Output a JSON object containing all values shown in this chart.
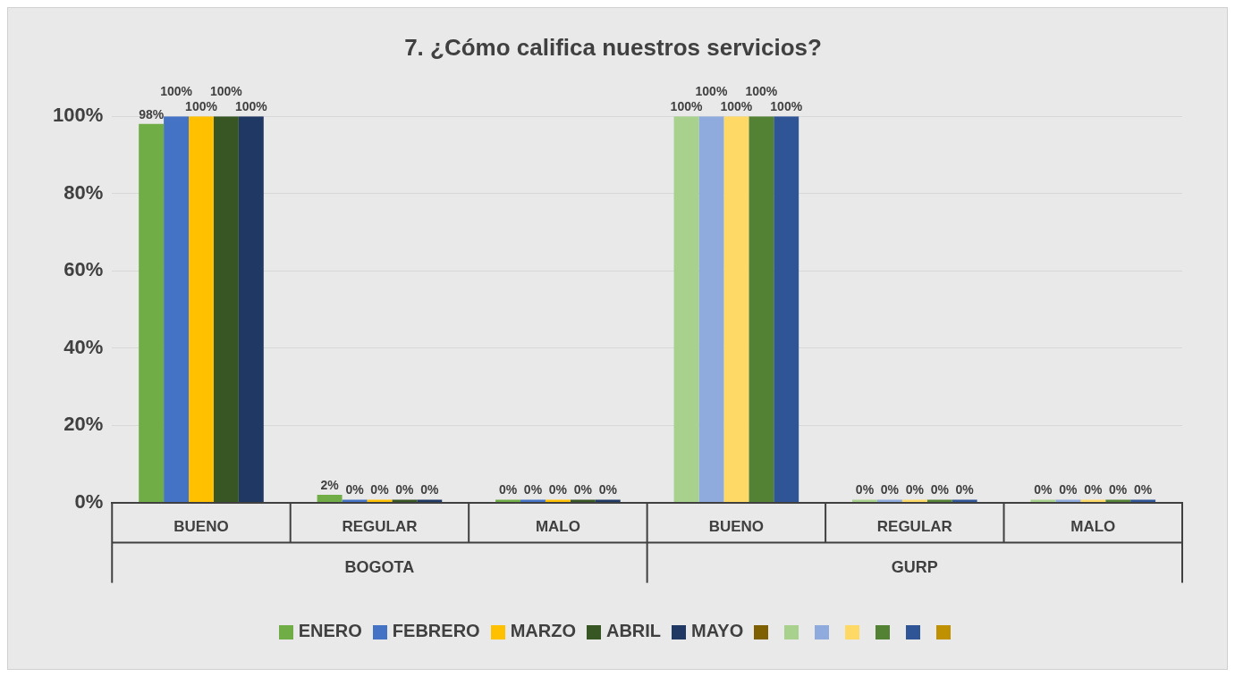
{
  "chart_data": {
    "type": "bar",
    "title": "7. ¿Cómo califica nuestros servicios?",
    "categories": [
      "BUENO",
      "REGULAR",
      "MALO",
      "BUENO",
      "REGULAR",
      "MALO"
    ],
    "annotations": [
      "BOGOTA",
      "GURP"
    ],
    "series": [
      {
        "name": "ENERO",
        "color": "#70ad47",
        "values": [
          98,
          2,
          0,
          null,
          null,
          null
        ],
        "value_labels": [
          "98%",
          "2%",
          "0%",
          null,
          null,
          null
        ]
      },
      {
        "name": "FEBRERO",
        "color": "#4472c4",
        "values": [
          100,
          0,
          0,
          null,
          null,
          null
        ],
        "value_labels": [
          "100%",
          "0%",
          "0%",
          null,
          null,
          null
        ]
      },
      {
        "name": "MARZO",
        "color": "#ffc000",
        "values": [
          100,
          0,
          0,
          null,
          null,
          null
        ],
        "value_labels": [
          "100%",
          "0%",
          "0%",
          null,
          null,
          null
        ]
      },
      {
        "name": "ABRIL",
        "color": "#375623",
        "values": [
          100,
          0,
          0,
          null,
          null,
          null
        ],
        "value_labels": [
          "100%",
          "0%",
          "0%",
          null,
          null,
          null
        ]
      },
      {
        "name": "MAYO",
        "color": "#203864",
        "values": [
          100,
          0,
          0,
          null,
          null,
          null
        ],
        "value_labels": [
          "100%",
          "0%",
          "0%",
          null,
          null,
          null
        ]
      },
      {
        "color": "#7f6000",
        "values": [
          null,
          null,
          null,
          null,
          null,
          null
        ]
      },
      {
        "color": "#a9d18e",
        "values": [
          null,
          null,
          null,
          100,
          0,
          0
        ],
        "value_labels": [
          null,
          null,
          null,
          "100%",
          "0%",
          "0%"
        ]
      },
      {
        "color": "#8faadc",
        "values": [
          null,
          null,
          null,
          100,
          0,
          0
        ],
        "value_labels": [
          null,
          null,
          null,
          "100%",
          "0%",
          "0%"
        ]
      },
      {
        "color": "#ffd966",
        "values": [
          null,
          null,
          null,
          100,
          0,
          0
        ],
        "value_labels": [
          null,
          null,
          null,
          "100%",
          "0%",
          "0%"
        ]
      },
      {
        "color": "#548235",
        "values": [
          null,
          null,
          null,
          100,
          0,
          0
        ],
        "value_labels": [
          null,
          null,
          null,
          "100%",
          "0%",
          "0%"
        ]
      },
      {
        "color": "#2f5597",
        "values": [
          null,
          null,
          null,
          100,
          0,
          0
        ],
        "value_labels": [
          null,
          null,
          null,
          "100%",
          "0%",
          "0%"
        ]
      },
      {
        "color": "#bf9000",
        "values": [
          null,
          null,
          null,
          null,
          null,
          null
        ]
      }
    ],
    "ylim": [
      0,
      100
    ],
    "yticks": [
      {
        "value": 0,
        "label": "0%"
      },
      {
        "value": 20,
        "label": "20%"
      },
      {
        "value": 40,
        "label": "40%"
      },
      {
        "value": 60,
        "label": "60%"
      },
      {
        "value": 80,
        "label": "80%"
      },
      {
        "value": 100,
        "label": "100%"
      }
    ],
    "grid": "y",
    "legend": "bottom"
  }
}
